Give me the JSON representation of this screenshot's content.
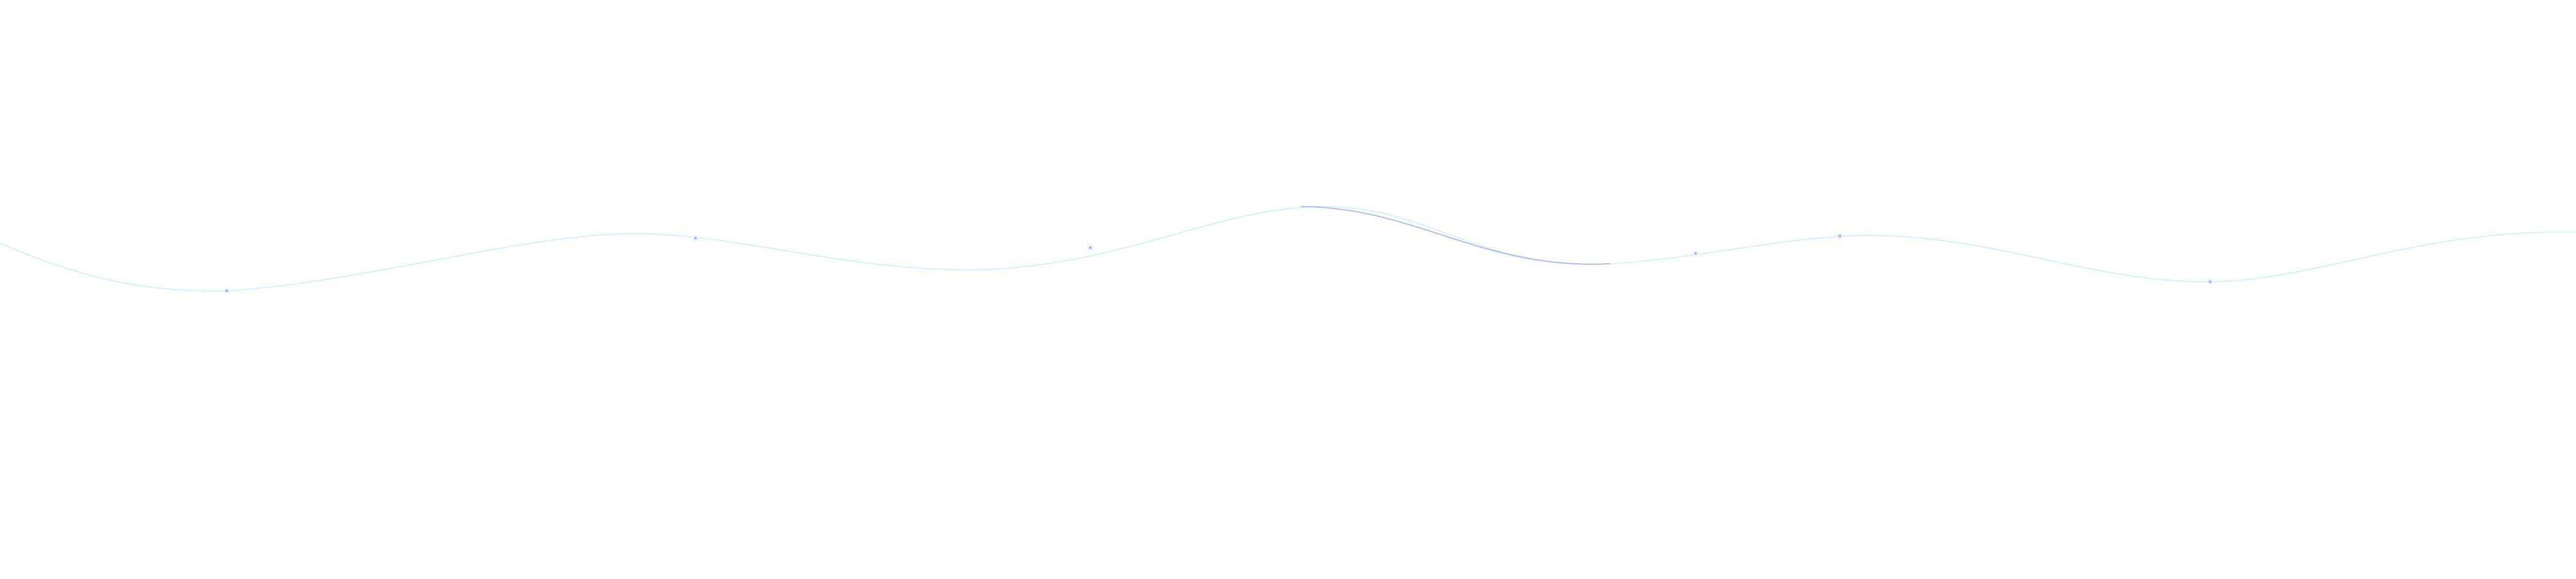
{
  "background": "#ffffff",
  "wave": {
    "line_color": "#dcf1fb",
    "highlight_color": "#b6bdeb",
    "marker_color": "#a8b0e0"
  }
}
